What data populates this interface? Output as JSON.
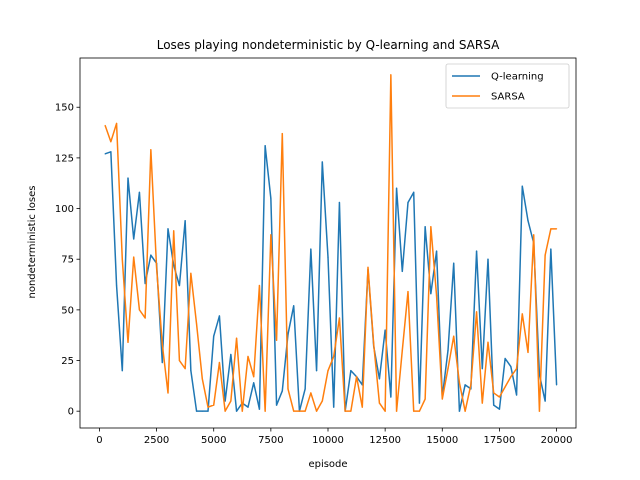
{
  "chart_data": {
    "type": "line",
    "title": "Loses playing nondeterministic by Q-learning and SARSA",
    "xlabel": "episode",
    "ylabel": "nondeterministic loses",
    "xlim": [
      -850,
      20850
    ],
    "ylim": [
      -8.3,
      174.3
    ],
    "xticks": [
      0,
      2500,
      5000,
      7500,
      10000,
      12500,
      15000,
      17500,
      20000
    ],
    "yticks": [
      0,
      25,
      50,
      75,
      100,
      125,
      150
    ],
    "grid": false,
    "legend_position": "top-right",
    "x": [
      250,
      500,
      750,
      1000,
      1250,
      1500,
      1750,
      2000,
      2250,
      2500,
      2750,
      3000,
      3250,
      3500,
      3750,
      4000,
      4250,
      4500,
      4750,
      5000,
      5250,
      5500,
      5750,
      6000,
      6250,
      6500,
      6750,
      7000,
      7250,
      7500,
      7750,
      8000,
      8250,
      8500,
      8750,
      9000,
      9250,
      9500,
      9750,
      10000,
      10250,
      10500,
      10750,
      11000,
      11250,
      11500,
      11750,
      12000,
      12250,
      12500,
      12750,
      13000,
      13250,
      13500,
      13750,
      14000,
      14250,
      14500,
      14750,
      15000,
      15250,
      15500,
      15750,
      16000,
      16250,
      16500,
      16750,
      17000,
      17250,
      17500,
      17750,
      18000,
      18250,
      18500,
      18750,
      19000,
      19250,
      19500,
      19750,
      20000
    ],
    "series": [
      {
        "name": "Q-learning",
        "color": "#1f77b4",
        "values": [
          127,
          128,
          62,
          20,
          115,
          85,
          108,
          63,
          77,
          73,
          24,
          90,
          72,
          62,
          94,
          20,
          0,
          0,
          0,
          37,
          47,
          5,
          28,
          0,
          4,
          2,
          14,
          1,
          131,
          105,
          3,
          10,
          38,
          52,
          0,
          11,
          80,
          20,
          123,
          76,
          2,
          103,
          0,
          20,
          17,
          13,
          70,
          32,
          16,
          40,
          7,
          110,
          69,
          103,
          108,
          4,
          91,
          58,
          79,
          7,
          30,
          73,
          0,
          13,
          11,
          79,
          21,
          75,
          3,
          1,
          26,
          22,
          8,
          111,
          94,
          83,
          18,
          5,
          80,
          13
        ]
      },
      {
        "name": "SARSA",
        "color": "#ff7f0e",
        "values": [
          141,
          133,
          142,
          75,
          34,
          76,
          50,
          46,
          129,
          71,
          33,
          9,
          89,
          25,
          21,
          68,
          43,
          16,
          2,
          3,
          24,
          0,
          5,
          36,
          0,
          27,
          17,
          62,
          0,
          87,
          35,
          137,
          11,
          0,
          0,
          0,
          9,
          0,
          5,
          20,
          27,
          46,
          0,
          0,
          17,
          2,
          71,
          33,
          4,
          0,
          166,
          0,
          30,
          59,
          0,
          0,
          6,
          91,
          57,
          6,
          21,
          37,
          14,
          0,
          13,
          49,
          4,
          34,
          9,
          7,
          12,
          17,
          21,
          48,
          29,
          87,
          0,
          77,
          90,
          90
        ]
      }
    ]
  }
}
